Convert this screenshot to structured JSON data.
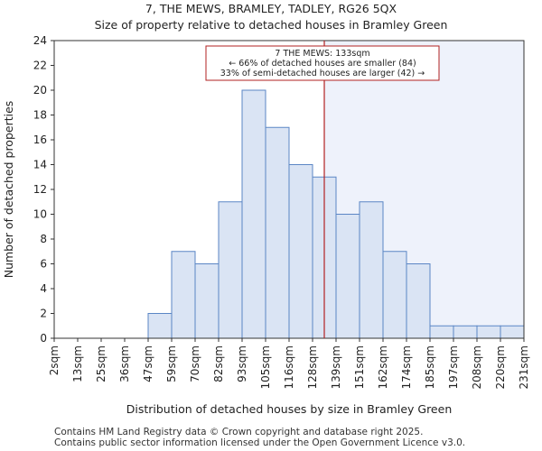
{
  "chart_data": {
    "type": "bar",
    "title_line1": "7, THE MEWS, BRAMLEY, TADLEY, RG26 5QX",
    "title_line2": "Size of property relative to detached houses in Bramley Green",
    "xlabel": "Distribution of detached houses by size in Bramley Green",
    "ylabel": "Number of detached properties",
    "x_tick_labels": [
      "2sqm",
      "13sqm",
      "25sqm",
      "36sqm",
      "47sqm",
      "59sqm",
      "70sqm",
      "82sqm",
      "93sqm",
      "105sqm",
      "116sqm",
      "128sqm",
      "139sqm",
      "151sqm",
      "162sqm",
      "174sqm",
      "185sqm",
      "197sqm",
      "208sqm",
      "220sqm",
      "231sqm"
    ],
    "values": [
      0,
      0,
      0,
      0,
      2,
      7,
      6,
      11,
      20,
      17,
      14,
      13,
      10,
      11,
      7,
      6,
      1,
      1,
      1,
      1
    ],
    "ylim": [
      0,
      24
    ],
    "y_ticks": [
      0,
      2,
      4,
      6,
      8,
      10,
      12,
      14,
      16,
      18,
      20,
      22,
      24
    ],
    "grid": false,
    "marker": {
      "position_bin": 11.5,
      "label_line1": "7 THE MEWS: 133sqm",
      "label_line2": "← 66% of detached houses are smaller (84)",
      "label_line3": "33% of semi-detached houses are larger (42) →"
    },
    "colors": {
      "bar_fill": "#dae4f4",
      "bar_edge": "#5b86c5",
      "highlight_bg": "#eef2fb",
      "marker_line": "#b22222",
      "axis": "#333333"
    }
  },
  "footer": {
    "line1": "Contains HM Land Registry data © Crown copyright and database right 2025.",
    "line2": "Contains public sector information licensed under the Open Government Licence v3.0."
  }
}
